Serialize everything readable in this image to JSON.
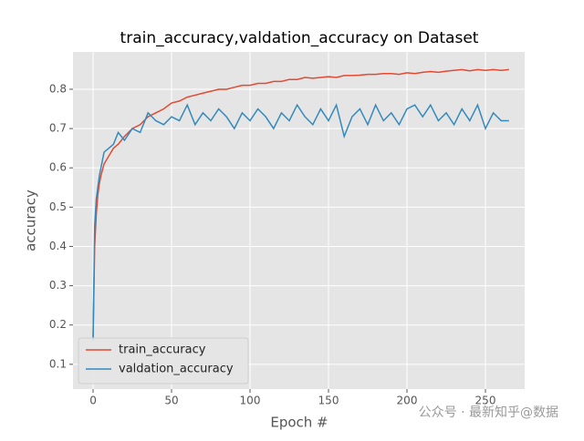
{
  "chart_data": {
    "type": "line",
    "title": "train_accuracy,valdation_accuracy on Dataset",
    "xlabel": "Epoch #",
    "ylabel": "accuracy",
    "x": [
      0,
      1,
      2,
      3,
      4,
      5,
      7,
      10,
      13,
      16,
      20,
      25,
      30,
      35,
      40,
      45,
      50,
      55,
      60,
      65,
      70,
      75,
      80,
      85,
      90,
      95,
      100,
      105,
      110,
      115,
      120,
      125,
      130,
      135,
      140,
      145,
      150,
      155,
      160,
      165,
      170,
      175,
      180,
      185,
      190,
      195,
      200,
      205,
      210,
      215,
      220,
      225,
      230,
      235,
      240,
      245,
      250,
      255,
      260,
      265
    ],
    "series": [
      {
        "name": "train_accuracy",
        "color": "#E24A33",
        "values": [
          0.17,
          0.4,
          0.48,
          0.53,
          0.56,
          0.58,
          0.61,
          0.63,
          0.65,
          0.66,
          0.68,
          0.7,
          0.71,
          0.73,
          0.74,
          0.75,
          0.765,
          0.77,
          0.78,
          0.785,
          0.79,
          0.795,
          0.8,
          0.8,
          0.805,
          0.81,
          0.81,
          0.815,
          0.815,
          0.82,
          0.82,
          0.825,
          0.825,
          0.83,
          0.828,
          0.83,
          0.832,
          0.83,
          0.835,
          0.835,
          0.836,
          0.838,
          0.838,
          0.84,
          0.84,
          0.838,
          0.842,
          0.84,
          0.843,
          0.845,
          0.843,
          0.846,
          0.848,
          0.85,
          0.847,
          0.85,
          0.848,
          0.85,
          0.848,
          0.85
        ]
      },
      {
        "name": "valdation_accuracy",
        "color": "#348ABD",
        "values": [
          0.16,
          0.45,
          0.52,
          0.55,
          0.58,
          0.6,
          0.64,
          0.65,
          0.66,
          0.69,
          0.67,
          0.7,
          0.69,
          0.74,
          0.72,
          0.71,
          0.73,
          0.72,
          0.76,
          0.71,
          0.74,
          0.72,
          0.75,
          0.73,
          0.7,
          0.74,
          0.72,
          0.75,
          0.73,
          0.7,
          0.74,
          0.72,
          0.76,
          0.73,
          0.71,
          0.75,
          0.72,
          0.76,
          0.68,
          0.73,
          0.75,
          0.71,
          0.76,
          0.72,
          0.74,
          0.71,
          0.75,
          0.76,
          0.73,
          0.76,
          0.72,
          0.74,
          0.71,
          0.75,
          0.72,
          0.76,
          0.7,
          0.74,
          0.72,
          0.72
        ]
      }
    ],
    "xlim": [
      -12.8,
      275
    ],
    "xticks": [
      0,
      50,
      100,
      150,
      200,
      250
    ],
    "ylim": [
      0.037,
      0.895
    ],
    "yticks": [
      0.1,
      0.2,
      0.3,
      0.4,
      0.5,
      0.6,
      0.7,
      0.8
    ],
    "grid": true,
    "legend": "lower left"
  },
  "watermark": "公众号 · 最新知乎@数据"
}
